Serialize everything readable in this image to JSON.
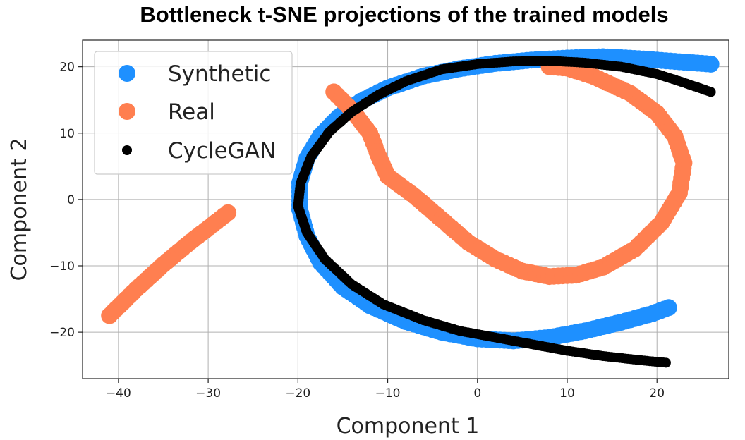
{
  "chart_data": {
    "type": "scatter",
    "title": "Bottleneck t-SNE projections of the trained models",
    "xlabel": "Component 1",
    "ylabel": "Component 2",
    "xlim": [
      -44,
      28
    ],
    "ylim": [
      -27,
      24
    ],
    "xticks": [
      -40,
      -30,
      -20,
      -10,
      0,
      10,
      20
    ],
    "yticks": [
      -20,
      -10,
      0,
      10,
      20
    ],
    "grid": true,
    "legend_position": "top-left",
    "series": [
      {
        "name": "Synthetic",
        "color": "#1e90ff",
        "points": [
          [
            26,
            20.4
          ],
          [
            22,
            20.8
          ],
          [
            18,
            21.2
          ],
          [
            14,
            21.5
          ],
          [
            10,
            21.3
          ],
          [
            6,
            21.0
          ],
          [
            2,
            20.5
          ],
          [
            -2,
            19.7
          ],
          [
            -6,
            18.6
          ],
          [
            -10,
            16.8
          ],
          [
            -13,
            14.8
          ],
          [
            -15.5,
            12.4
          ],
          [
            -17.5,
            9.6
          ],
          [
            -19,
            6.2
          ],
          [
            -19.8,
            2.5
          ],
          [
            -19.8,
            -1.5
          ],
          [
            -19,
            -5.5
          ],
          [
            -17.5,
            -9.5
          ],
          [
            -15,
            -13.2
          ],
          [
            -12,
            -16.0
          ],
          [
            -8,
            -18.4
          ],
          [
            -4,
            -20.0
          ],
          [
            0,
            -21.0
          ],
          [
            4,
            -21.3
          ],
          [
            8,
            -20.8
          ],
          [
            12,
            -19.8
          ],
          [
            16,
            -18.5
          ],
          [
            19.5,
            -17.2
          ],
          [
            21.3,
            -16.3
          ]
        ]
      },
      {
        "name": "Real",
        "color": "#ff7f50",
        "points": [
          [
            -41,
            -17.5
          ],
          [
            -38,
            -13.5
          ],
          [
            -35,
            -9.8
          ],
          [
            -32,
            -6.4
          ],
          [
            -29.5,
            -3.8
          ],
          [
            -27.8,
            -2.0
          ],
          [
            -16,
            16.2
          ],
          [
            -14,
            13.5
          ],
          [
            -12,
            10.0
          ],
          [
            -11,
            6.5
          ],
          [
            -10,
            3.5
          ],
          [
            -7,
            0.5
          ],
          [
            -4,
            -3.0
          ],
          [
            -1,
            -6.5
          ],
          [
            2,
            -9.0
          ],
          [
            5,
            -10.8
          ],
          [
            8,
            -11.6
          ],
          [
            11,
            -11.4
          ],
          [
            14,
            -10.2
          ],
          [
            17.5,
            -7.5
          ],
          [
            20.5,
            -3.5
          ],
          [
            22.5,
            1.0
          ],
          [
            23,
            5.5
          ],
          [
            22,
            9.5
          ],
          [
            20,
            13.0
          ],
          [
            17,
            16.0
          ],
          [
            13,
            18.5
          ],
          [
            10,
            19.8
          ],
          [
            8,
            20.0
          ]
        ]
      },
      {
        "name": "CycleGAN",
        "color": "#000000",
        "points": [
          [
            26,
            16.2
          ],
          [
            23,
            17.6
          ],
          [
            20,
            18.9
          ],
          [
            16,
            20.0
          ],
          [
            12,
            20.6
          ],
          [
            8,
            20.9
          ],
          [
            4,
            20.8
          ],
          [
            0,
            20.4
          ],
          [
            -4,
            19.6
          ],
          [
            -8,
            17.8
          ],
          [
            -11,
            15.8
          ],
          [
            -14,
            13.2
          ],
          [
            -16.5,
            10.2
          ],
          [
            -18.5,
            6.5
          ],
          [
            -19.7,
            2.5
          ],
          [
            -20,
            -1.0
          ],
          [
            -19,
            -5.0
          ],
          [
            -17,
            -9.0
          ],
          [
            -14,
            -12.8
          ],
          [
            -10.5,
            -15.8
          ],
          [
            -6,
            -18.2
          ],
          [
            -2,
            -19.8
          ],
          [
            2,
            -20.8
          ],
          [
            6,
            -21.8
          ],
          [
            10,
            -22.8
          ],
          [
            14,
            -23.6
          ],
          [
            18,
            -24.2
          ],
          [
            21,
            -24.6
          ]
        ]
      }
    ]
  }
}
